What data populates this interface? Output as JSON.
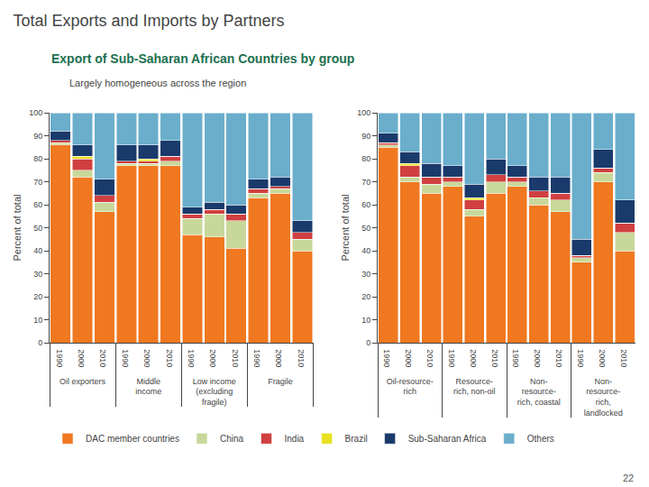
{
  "title": "Total Exports and Imports by Partners",
  "subtitle": "Export of Sub-Saharan African Countries by group",
  "annotations": [
    "Largely homogeneous across the region",
    "22"
  ],
  "chart_data": [
    {
      "type": "bar",
      "stacked": true,
      "grid": false,
      "legend": "bottom",
      "y_label": "Percent of total",
      "ylim": [
        0,
        100
      ],
      "yticks": [
        0,
        10,
        20,
        30,
        40,
        50,
        60,
        70,
        80,
        90,
        100
      ],
      "categories": [
        [
          "Oil exporters",
          "1990"
        ],
        [
          "Oil exporters",
          "2000"
        ],
        [
          "Oil exporters",
          "2010"
        ],
        [
          "Middle\nincome",
          "1990"
        ],
        [
          "Middle\nincome",
          "2000"
        ],
        [
          "Middle\nincome",
          "2010"
        ],
        [
          "Low income\n(excluding\nfragile)",
          "1990"
        ],
        [
          "Low income\n(excluding\nfragile)",
          "2000"
        ],
        [
          "Low income\n(excluding\nfragile)",
          "2010"
        ],
        [
          "Fragile",
          "1990"
        ],
        [
          "Fragile",
          "2000"
        ],
        [
          "Fragile",
          "2010"
        ]
      ],
      "series": [
        {
          "name": "DAC member countries",
          "color": "#f07820",
          "values": [
            86,
            72,
            57,
            77,
            77,
            77,
            47,
            46,
            41,
            63,
            65,
            40
          ]
        },
        {
          "name": "China",
          "color": "#c8d89a",
          "values": [
            1,
            3,
            4,
            1,
            1,
            2,
            7,
            10,
            12,
            2,
            2,
            5
          ]
        },
        {
          "name": "India",
          "color": "#d04040",
          "values": [
            1,
            5,
            3,
            1,
            1,
            2,
            2,
            2,
            3,
            2,
            1,
            3
          ]
        },
        {
          "name": "Brazil",
          "color": "#e8e020",
          "values": [
            0,
            1,
            0,
            0,
            1,
            0,
            0,
            0,
            0,
            0,
            0,
            0
          ]
        },
        {
          "name": "Sub-Saharan Africa",
          "color": "#1a3a6c",
          "values": [
            4,
            5,
            7,
            7,
            6,
            7,
            3,
            3,
            4,
            4,
            4,
            5
          ]
        },
        {
          "name": "Others",
          "color": "#6aaecc",
          "values": [
            8,
            14,
            29,
            14,
            14,
            12,
            41,
            39,
            40,
            29,
            28,
            47
          ]
        }
      ]
    },
    {
      "type": "bar",
      "stacked": true,
      "grid": false,
      "legend": "bottom",
      "y_label": "Percent of total",
      "ylim": [
        0,
        100
      ],
      "yticks": [
        0,
        10,
        20,
        30,
        40,
        50,
        60,
        70,
        80,
        90,
        100
      ],
      "categories": [
        [
          "Oil-resource-\nrich",
          "1990"
        ],
        [
          "Oil-resource-\nrich",
          "2000"
        ],
        [
          "Oil-resource-\nrich",
          "2010"
        ],
        [
          "Resource-\nrich, non-oil",
          "1990"
        ],
        [
          "Resource-\nrich, non-oil",
          "2000"
        ],
        [
          "Resource-\nrich, non-oil",
          "2010"
        ],
        [
          "Non-\nresource-\nrich, coastal",
          "1990"
        ],
        [
          "Non-\nresource-\nrich, coastal",
          "2000"
        ],
        [
          "Non-\nresource-\nrich, coastal",
          "2010"
        ],
        [
          "Non-\nresource-\nrich,\nlandlocked",
          "1990"
        ],
        [
          "Non-\nresource-\nrich,\nlandlocked",
          "2000"
        ],
        [
          "Non-\nresource-\nrich,\nlandlocked",
          "2010"
        ]
      ],
      "series": [
        {
          "name": "DAC member countries",
          "color": "#f07820",
          "values": [
            85,
            70,
            65,
            68,
            55,
            65,
            68,
            60,
            57,
            35,
            70,
            40
          ]
        },
        {
          "name": "China",
          "color": "#c8d89a",
          "values": [
            1,
            2,
            4,
            2,
            3,
            5,
            2,
            3,
            5,
            2,
            4,
            8
          ]
        },
        {
          "name": "India",
          "color": "#d04040",
          "values": [
            1,
            5,
            3,
            2,
            4,
            3,
            2,
            3,
            3,
            1,
            2,
            4
          ]
        },
        {
          "name": "Brazil",
          "color": "#e8e020",
          "values": [
            0,
            1,
            0,
            0,
            1,
            0,
            0,
            0,
            0,
            0,
            0,
            0
          ]
        },
        {
          "name": "Sub-Saharan Africa",
          "color": "#1a3a6c",
          "values": [
            4,
            5,
            6,
            5,
            6,
            7,
            5,
            6,
            7,
            7,
            8,
            10
          ]
        },
        {
          "name": "Others",
          "color": "#6aaecc",
          "values": [
            9,
            17,
            22,
            23,
            31,
            20,
            23,
            28,
            28,
            55,
            16,
            38
          ]
        }
      ]
    }
  ]
}
